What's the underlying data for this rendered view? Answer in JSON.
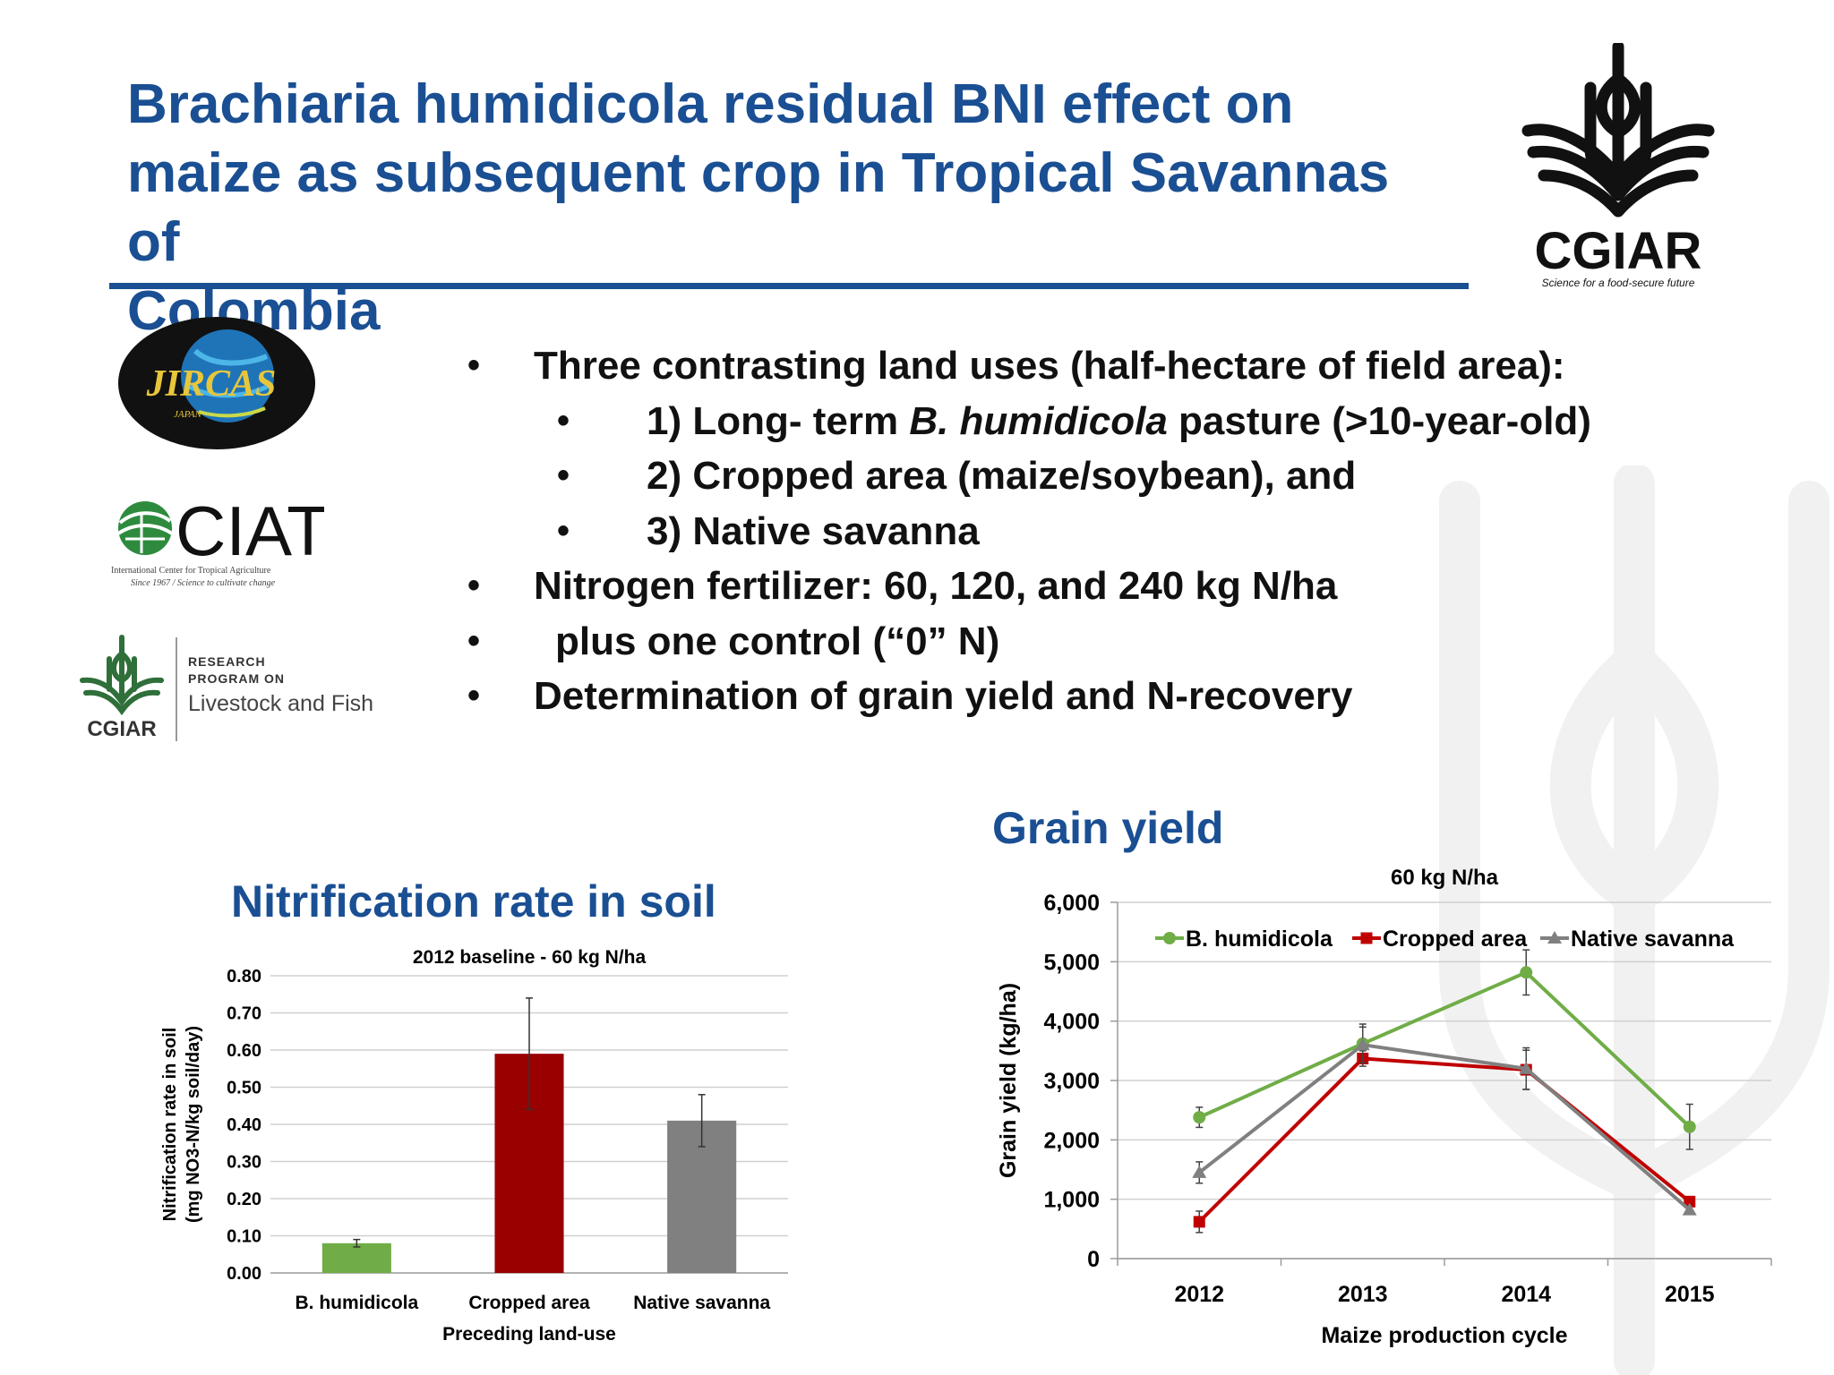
{
  "slide": {
    "title_line1": "Brachiaria humidicola residual BNI effect on",
    "title_line2": "maize as subsequent crop in Tropical Savannas of",
    "title_line3": "Colombia"
  },
  "logos": {
    "cgiar_main": {
      "name": "CGIAR",
      "tagline": "Science for a food-secure future"
    },
    "jircas": {
      "name": "JIRCAS",
      "sub": "JAPAN"
    },
    "ciat": {
      "name": "CIAT",
      "line1": "International Center for Tropical Agriculture",
      "line2": "Since 1967 / Science to cultivate change"
    },
    "crp": {
      "name": "CGIAR",
      "line1": "RESEARCH",
      "line2": "PROGRAM ON",
      "line3": "Livestock and Fish"
    }
  },
  "bullets": {
    "b1": "Three contrasting land uses (half-hectare of field area):",
    "s1_pre": "1) Long- term ",
    "s1_em": "B. humidicola",
    "s1_post": " pasture (>10-year-old)",
    "s2": "2) Cropped area (maize/soybean), and",
    "s3": "3) Native savanna",
    "b2": "Nitrogen fertilizer: 60, 120, and 240 kg N/ha",
    "b3": "plus one control (“0” N)",
    "b4": "Determination of grain yield and N-recovery",
    "dot": "•"
  },
  "sections": {
    "nitrification_title": "Nitrification rate in soil",
    "grain_title": "Grain yield"
  },
  "chart_data": [
    {
      "type": "bar",
      "title": "2012 baseline - 60 kg N/ha",
      "xlabel": "Preceding land-use",
      "ylabel_line1": "Nitrification rate in soil",
      "ylabel_line2": "(mg NO3-N/kg soil/day)",
      "categories": [
        "B. humidicola",
        "Cropped area",
        "Native savanna"
      ],
      "values": [
        0.08,
        0.59,
        0.41
      ],
      "errors": [
        0.01,
        0.15,
        0.07
      ],
      "colors": [
        "#70ad47",
        "#990000",
        "#808080"
      ],
      "ylim": [
        0,
        0.8
      ],
      "yticks": [
        "0.00",
        "0.10",
        "0.20",
        "0.30",
        "0.40",
        "0.50",
        "0.60",
        "0.70",
        "0.80"
      ],
      "grid": true
    },
    {
      "type": "line",
      "title": "60 kg N/ha",
      "xlabel": "Maize production cycle",
      "ylabel": "Grain yield (kg/ha)",
      "x": [
        "2012",
        "2013",
        "2014",
        "2015"
      ],
      "ylim": [
        0,
        6000
      ],
      "yticks": [
        "0",
        "1,000",
        "2,000",
        "3,000",
        "4,000",
        "5,000",
        "6,000"
      ],
      "grid": true,
      "legend": "top",
      "series": [
        {
          "name": "B. humidicola",
          "color": "#70ad47",
          "marker": "circle",
          "values": [
            2380,
            3620,
            4820,
            2220
          ],
          "errors": [
            170,
            330,
            380,
            380
          ]
        },
        {
          "name": "Cropped area",
          "color": "#c00000",
          "marker": "square",
          "values": [
            620,
            3370,
            3180,
            960
          ],
          "errors": [
            180,
            130,
            330,
            0
          ]
        },
        {
          "name": "Native savanna",
          "color": "#808080",
          "marker": "triangle",
          "values": [
            1450,
            3600,
            3200,
            820
          ],
          "errors": [
            180,
            300,
            350,
            0
          ]
        }
      ]
    }
  ]
}
